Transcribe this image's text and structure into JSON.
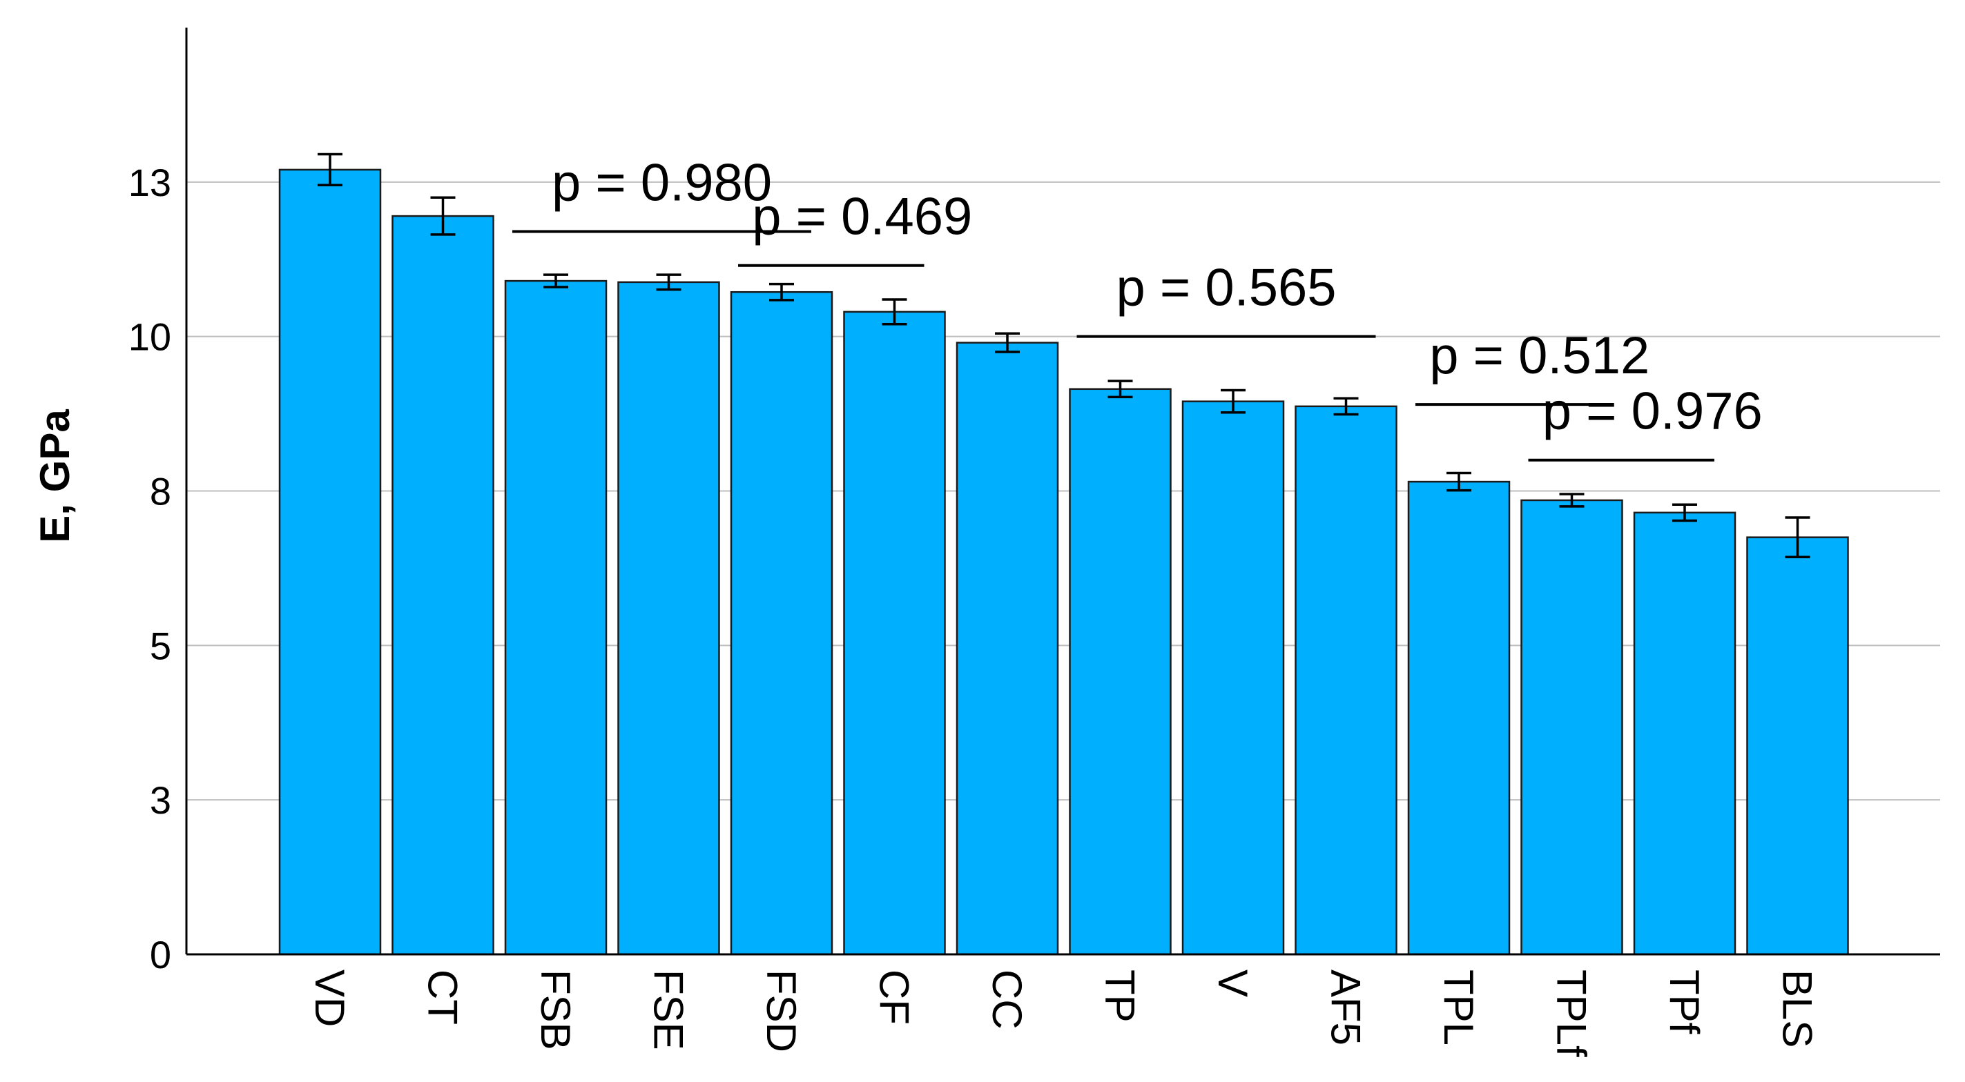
{
  "chart_data": {
    "type": "bar",
    "title": "",
    "xlabel": "",
    "ylabel": "E, GPa",
    "ylim": [
      0,
      15
    ],
    "yticks": [
      0,
      2.5,
      5,
      7.5,
      10,
      12.5
    ],
    "ytick_labels": [
      "0",
      "3",
      "5",
      "8",
      "10",
      "13"
    ],
    "grid": "horizontal",
    "bar_color": "#00B0FF",
    "categories": [
      "VD",
      "CT",
      "FSB",
      "FSE",
      "FSD",
      "CF",
      "CC",
      "TP",
      "V",
      "AF5",
      "TPL",
      "TPLf",
      "TPf",
      "BLS"
    ],
    "values": [
      12.7,
      11.95,
      10.9,
      10.88,
      10.72,
      10.4,
      9.9,
      9.15,
      8.95,
      8.87,
      7.65,
      7.35,
      7.15,
      6.75
    ],
    "error": [
      0.25,
      0.3,
      0.1,
      0.12,
      0.13,
      0.2,
      0.15,
      0.13,
      0.18,
      0.13,
      0.14,
      0.1,
      0.13,
      0.32
    ],
    "annotations": [
      {
        "text": "p = 0.980",
        "from": "FSB",
        "to": "FSD",
        "line_y": 11.7
      },
      {
        "text": "p = 0.469",
        "from": "FSD",
        "to": "CF",
        "line_y": 11.15
      },
      {
        "text": "p = 0.565",
        "from": "TP",
        "to": "AF5",
        "line_y": 10.0
      },
      {
        "text": "p = 0.512",
        "from": "TPL",
        "to": "TPLf",
        "line_y": 8.9
      },
      {
        "text": "p = 0.976",
        "from": "TPLf",
        "to": "TPf",
        "line_y": 8.0
      }
    ]
  }
}
